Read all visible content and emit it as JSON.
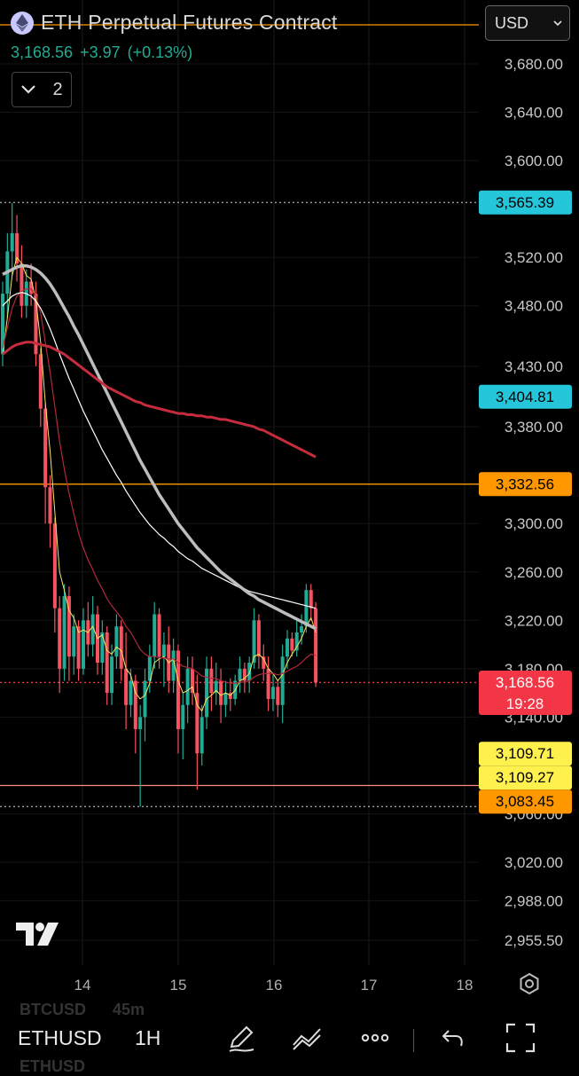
{
  "header": {
    "title": "ETH Perpetual Futures Contract",
    "last_price": "3,168.56",
    "change": "+3.97",
    "change_pct": "(+0.13%)",
    "indicator_count": "2",
    "currency": "USD"
  },
  "colors": {
    "up": "#22ab94",
    "down": "#f7525f",
    "orange": "#ff9800",
    "cyan": "#26c6da",
    "yellow": "#fff14d",
    "ma_fast": "#f5e663",
    "ma_mid": "#b2283b",
    "ma_white": "#ffffff",
    "ma_gray": "#bdbdbd",
    "ma_red": "#c62c3d"
  },
  "chart_data": {
    "type": "candlestick",
    "symbol": "ETHUSD",
    "interval": "1H",
    "x_ticks": [
      "14",
      "15",
      "16",
      "17",
      "18"
    ],
    "y_ticks": [
      3680,
      3640,
      3600,
      3520,
      3480,
      3430,
      3380,
      3300,
      3260,
      3220,
      3180,
      3140,
      3060,
      3020,
      2988,
      2955.5
    ],
    "y_tick_labels": [
      "3,680.00",
      "3,640.00",
      "3,600.00",
      "3,520.00",
      "3,480.00",
      "3,430.00",
      "3,380.00",
      "3,300.00",
      "3,260.00",
      "3,220.00",
      "3,180.00",
      "3,140.00",
      "3,060.00",
      "3,020.00",
      "2,988.00",
      "2,955.50"
    ],
    "ylim": [
      2940,
      3715
    ],
    "price_tags": [
      {
        "label": "3,565.39",
        "value": 3565.39,
        "color": "#26c6da",
        "text_color": "#000000"
      },
      {
        "label": "3,404.81",
        "value": 3404.81,
        "color": "#26c6da",
        "text_color": "#000000"
      },
      {
        "label": "3,332.56",
        "value": 3332.56,
        "color": "#ff9800",
        "text_color": "#000000"
      },
      {
        "label": "3,168.56",
        "value": 3168.56,
        "color": "#f23645",
        "text_color": "#ffffff",
        "countdown": "19:28"
      },
      {
        "label": "3,109.71",
        "value": 3109.71,
        "color": "#fff14d",
        "text_color": "#000000"
      },
      {
        "label": "3,109.27",
        "value": 3109.27,
        "color": "#fff14d",
        "text_color": "#000000"
      },
      {
        "label": "3,083.45",
        "value": 3083.45,
        "color": "#ff9800",
        "text_color": "#000000"
      }
    ],
    "levels": [
      {
        "value": 3565.39,
        "style": "dotted",
        "color": "#9e9e9e"
      },
      {
        "value": 3332.56,
        "style": "solid",
        "color": "#ff9800"
      },
      {
        "value": 3168.56,
        "style": "dotted",
        "color": "#f23645"
      },
      {
        "value": 3083.45,
        "style": "solid",
        "color": "#ff8a80"
      },
      {
        "value": 3066,
        "style": "dotted",
        "color": "#9e9e9e"
      }
    ],
    "candles": [
      {
        "o": 3440,
        "h": 3500,
        "l": 3430,
        "c": 3490
      },
      {
        "o": 3490,
        "h": 3540,
        "l": 3470,
        "c": 3525
      },
      {
        "o": 3525,
        "h": 3565,
        "l": 3505,
        "c": 3540
      },
      {
        "o": 3540,
        "h": 3555,
        "l": 3500,
        "c": 3515
      },
      {
        "o": 3515,
        "h": 3530,
        "l": 3470,
        "c": 3480
      },
      {
        "o": 3480,
        "h": 3510,
        "l": 3470,
        "c": 3500
      },
      {
        "o": 3500,
        "h": 3515,
        "l": 3480,
        "c": 3490
      },
      {
        "o": 3490,
        "h": 3500,
        "l": 3430,
        "c": 3440
      },
      {
        "o": 3440,
        "h": 3445,
        "l": 3380,
        "c": 3395
      },
      {
        "o": 3395,
        "h": 3400,
        "l": 3300,
        "c": 3330
      },
      {
        "o": 3330,
        "h": 3340,
        "l": 3280,
        "c": 3300
      },
      {
        "o": 3300,
        "h": 3305,
        "l": 3210,
        "c": 3230
      },
      {
        "o": 3230,
        "h": 3240,
        "l": 3160,
        "c": 3180
      },
      {
        "o": 3180,
        "h": 3250,
        "l": 3170,
        "c": 3240
      },
      {
        "o": 3240,
        "h": 3248,
        "l": 3170,
        "c": 3190
      },
      {
        "o": 3190,
        "h": 3225,
        "l": 3175,
        "c": 3215
      },
      {
        "o": 3215,
        "h": 3220,
        "l": 3170,
        "c": 3180
      },
      {
        "o": 3180,
        "h": 3230,
        "l": 3175,
        "c": 3220
      },
      {
        "o": 3220,
        "h": 3235,
        "l": 3190,
        "c": 3200
      },
      {
        "o": 3200,
        "h": 3240,
        "l": 3190,
        "c": 3225
      },
      {
        "o": 3225,
        "h": 3232,
        "l": 3175,
        "c": 3185
      },
      {
        "o": 3185,
        "h": 3220,
        "l": 3175,
        "c": 3210
      },
      {
        "o": 3210,
        "h": 3215,
        "l": 3150,
        "c": 3160
      },
      {
        "o": 3160,
        "h": 3200,
        "l": 3150,
        "c": 3190
      },
      {
        "o": 3190,
        "h": 3225,
        "l": 3180,
        "c": 3215
      },
      {
        "o": 3215,
        "h": 3220,
        "l": 3170,
        "c": 3180
      },
      {
        "o": 3180,
        "h": 3210,
        "l": 3130,
        "c": 3150
      },
      {
        "o": 3150,
        "h": 3180,
        "l": 3140,
        "c": 3170
      },
      {
        "o": 3170,
        "h": 3175,
        "l": 3110,
        "c": 3130
      },
      {
        "o": 3130,
        "h": 3150,
        "l": 3066,
        "c": 3140
      },
      {
        "o": 3140,
        "h": 3180,
        "l": 3120,
        "c": 3170
      },
      {
        "o": 3170,
        "h": 3200,
        "l": 3160,
        "c": 3190
      },
      {
        "o": 3190,
        "h": 3235,
        "l": 3180,
        "c": 3225
      },
      {
        "o": 3225,
        "h": 3230,
        "l": 3180,
        "c": 3190
      },
      {
        "o": 3190,
        "h": 3210,
        "l": 3165,
        "c": 3200
      },
      {
        "o": 3200,
        "h": 3215,
        "l": 3160,
        "c": 3170
      },
      {
        "o": 3170,
        "h": 3205,
        "l": 3160,
        "c": 3195
      },
      {
        "o": 3195,
        "h": 3200,
        "l": 3110,
        "c": 3130
      },
      {
        "o": 3130,
        "h": 3160,
        "l": 3105,
        "c": 3150
      },
      {
        "o": 3150,
        "h": 3190,
        "l": 3135,
        "c": 3180
      },
      {
        "o": 3180,
        "h": 3190,
        "l": 3150,
        "c": 3160
      },
      {
        "o": 3160,
        "h": 3175,
        "l": 3080,
        "c": 3110
      },
      {
        "o": 3110,
        "h": 3150,
        "l": 3100,
        "c": 3140
      },
      {
        "o": 3140,
        "h": 3190,
        "l": 3130,
        "c": 3180
      },
      {
        "o": 3180,
        "h": 3190,
        "l": 3145,
        "c": 3160
      },
      {
        "o": 3160,
        "h": 3185,
        "l": 3150,
        "c": 3170
      },
      {
        "o": 3170,
        "h": 3180,
        "l": 3135,
        "c": 3150
      },
      {
        "o": 3150,
        "h": 3170,
        "l": 3140,
        "c": 3160
      },
      {
        "o": 3160,
        "h": 3172,
        "l": 3145,
        "c": 3155
      },
      {
        "o": 3155,
        "h": 3175,
        "l": 3150,
        "c": 3170
      },
      {
        "o": 3170,
        "h": 3190,
        "l": 3160,
        "c": 3180
      },
      {
        "o": 3180,
        "h": 3185,
        "l": 3160,
        "c": 3170
      },
      {
        "o": 3170,
        "h": 3190,
        "l": 3160,
        "c": 3185
      },
      {
        "o": 3185,
        "h": 3230,
        "l": 3180,
        "c": 3220
      },
      {
        "o": 3220,
        "h": 3225,
        "l": 3180,
        "c": 3190
      },
      {
        "o": 3190,
        "h": 3200,
        "l": 3170,
        "c": 3180
      },
      {
        "o": 3180,
        "h": 3190,
        "l": 3145,
        "c": 3155
      },
      {
        "o": 3155,
        "h": 3175,
        "l": 3145,
        "c": 3165
      },
      {
        "o": 3165,
        "h": 3170,
        "l": 3140,
        "c": 3150
      },
      {
        "o": 3150,
        "h": 3200,
        "l": 3135,
        "c": 3190
      },
      {
        "o": 3190,
        "h": 3212,
        "l": 3180,
        "c": 3205
      },
      {
        "o": 3205,
        "h": 3210,
        "l": 3190,
        "c": 3195
      },
      {
        "o": 3195,
        "h": 3220,
        "l": 3190,
        "c": 3210
      },
      {
        "o": 3210,
        "h": 3225,
        "l": 3200,
        "c": 3215
      },
      {
        "o": 3215,
        "h": 3250,
        "l": 3210,
        "c": 3245
      },
      {
        "o": 3245,
        "h": 3250,
        "l": 3220,
        "c": 3230
      },
      {
        "o": 3230,
        "h": 3235,
        "l": 3165,
        "c": 3168.56
      }
    ],
    "moving_averages": [
      {
        "name": "",
        "color": "#f5e663",
        "width": 1,
        "values": [
          3440,
          3470,
          3505,
          3520,
          3515,
          3505,
          3502,
          3485,
          3450,
          3400,
          3360,
          3310,
          3260,
          3245,
          3228,
          3222,
          3210,
          3212,
          3210,
          3215,
          3205,
          3208,
          3195,
          3192,
          3198,
          3195,
          3180,
          3175,
          3160,
          3155,
          3158,
          3168,
          3185,
          3188,
          3190,
          3185,
          3188,
          3170,
          3160,
          3162,
          3165,
          3150,
          3145,
          3155,
          3158,
          3162,
          3158,
          3160,
          3158,
          3162,
          3170,
          3172,
          3176,
          3190,
          3192,
          3188,
          3180,
          3176,
          3170,
          3175,
          3185,
          3192,
          3198,
          3205,
          3215,
          3222,
          3210
        ]
      },
      {
        "name": "",
        "color": "#b2283b",
        "width": 1.2,
        "values": [
          3445,
          3462,
          3478,
          3488,
          3492,
          3494,
          3494,
          3488,
          3474,
          3450,
          3425,
          3397,
          3368,
          3345,
          3325,
          3308,
          3292,
          3280,
          3270,
          3262,
          3253,
          3246,
          3238,
          3232,
          3227,
          3222,
          3215,
          3210,
          3203,
          3196,
          3192,
          3190,
          3190,
          3189,
          3189,
          3188,
          3188,
          3185,
          3182,
          3181,
          3180,
          3177,
          3174,
          3173,
          3172,
          3172,
          3170,
          3169,
          3168,
          3168,
          3169,
          3169,
          3170,
          3173,
          3175,
          3176,
          3176,
          3176,
          3175,
          3176,
          3178,
          3180,
          3182,
          3185,
          3189,
          3192,
          3191
        ]
      },
      {
        "name": "",
        "color": "#ffffff",
        "width": 1.2,
        "values": [
          3480,
          3484,
          3488,
          3490,
          3491,
          3490,
          3488,
          3484,
          3478,
          3470,
          3461,
          3451,
          3440,
          3430,
          3420,
          3411,
          3402,
          3393,
          3385,
          3377,
          3369,
          3361,
          3354,
          3347,
          3340,
          3334,
          3327,
          3321,
          3315,
          3309,
          3304,
          3299,
          3295,
          3291,
          3288,
          3284,
          3281,
          3277,
          3274,
          3271,
          3269,
          3266,
          3263,
          3261,
          3259,
          3257,
          3255,
          3253,
          3251,
          3249,
          3247,
          3246,
          3244,
          3243,
          3242,
          3241,
          3240,
          3239,
          3238,
          3237,
          3236,
          3235,
          3234,
          3233,
          3232,
          3231,
          3230
        ]
      },
      {
        "name": "",
        "color": "#bdbdbd",
        "width": 3.5,
        "values": [
          3506,
          3508,
          3510,
          3512,
          3513,
          3513,
          3512,
          3510,
          3507,
          3503,
          3498,
          3492,
          3485,
          3478,
          3471,
          3463,
          3456,
          3448,
          3440,
          3432,
          3424,
          3416,
          3408,
          3400,
          3392,
          3384,
          3376,
          3368,
          3360,
          3352,
          3345,
          3338,
          3331,
          3324,
          3318,
          3312,
          3306,
          3300,
          3295,
          3290,
          3285,
          3280,
          3276,
          3272,
          3268,
          3264,
          3260,
          3257,
          3254,
          3251,
          3248,
          3245,
          3242,
          3240,
          3237,
          3235,
          3233,
          3231,
          3229,
          3227,
          3225,
          3223,
          3221,
          3219,
          3217,
          3215,
          3213
        ]
      },
      {
        "name": "",
        "color": "#c62c3d",
        "width": 3,
        "values": [
          3440,
          3443,
          3446,
          3448,
          3449,
          3450,
          3450,
          3449,
          3448,
          3447,
          3446,
          3444,
          3442,
          3440,
          3437,
          3434,
          3431,
          3428,
          3425,
          3422,
          3419,
          3416,
          3413,
          3411,
          3409,
          3407,
          3405,
          3403,
          3401,
          3400,
          3398,
          3397,
          3396,
          3395,
          3394,
          3393,
          3392,
          3391,
          3391,
          3390,
          3390,
          3389,
          3389,
          3388,
          3388,
          3387,
          3386,
          3386,
          3385,
          3384,
          3383,
          3382,
          3381,
          3380,
          3378,
          3377,
          3375,
          3373,
          3371,
          3369,
          3367,
          3365,
          3363,
          3361,
          3359,
          3357,
          3355
        ]
      }
    ]
  },
  "toolbar": {
    "symbol": "ETHUSD",
    "interval": "1H",
    "ghost_symbol_top": "BTCUSD",
    "ghost_interval_top": "45m",
    "ghost_symbol_bottom": "ETHUSD"
  },
  "icons": [
    "ethereum-icon",
    "chevron-down-icon",
    "tradingview-logo",
    "settings-icon",
    "pencil-icon",
    "indicators-icon",
    "more-icon",
    "undo-icon",
    "fullscreen-icon"
  ]
}
